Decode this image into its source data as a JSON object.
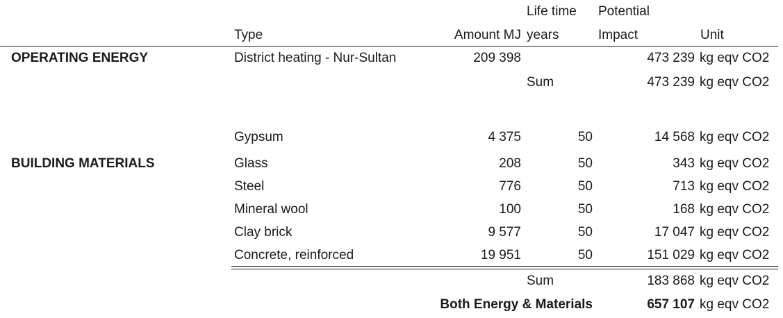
{
  "header": {
    "type": "Type",
    "amount": "Amount MJ",
    "lifetime_line1": "Life time",
    "lifetime_line2": "years",
    "impact_line1": "Potential",
    "impact_line2": "Impact",
    "unit": "Unit"
  },
  "operating": {
    "section_label": "OPERATING ENERGY",
    "rows": [
      {
        "type": "District heating - Nur-Sultan",
        "amount": "209 398",
        "impact": "473 239",
        "unit": "kg eqv CO2"
      }
    ],
    "sum_label": "Sum",
    "sum_impact": "473 239",
    "sum_unit": "kg eqv CO2"
  },
  "materials": {
    "section_label": "BUILDING MATERIALS",
    "rows": [
      {
        "type": "Gypsum",
        "amount": "4 375",
        "lifetime": "50",
        "impact": "14 568",
        "unit": "kg eqv CO2"
      },
      {
        "type": "Glass",
        "amount": "208",
        "lifetime": "50",
        "impact": "343",
        "unit": "kg eqv CO2"
      },
      {
        "type": "Steel",
        "amount": "776",
        "lifetime": "50",
        "impact": "713",
        "unit": "kg eqv CO2"
      },
      {
        "type": "Mineral wool",
        "amount": "100",
        "lifetime": "50",
        "impact": "168",
        "unit": "kg eqv CO2"
      },
      {
        "type": "Clay brick",
        "amount": "9 577",
        "lifetime": "50",
        "impact": "17 047",
        "unit": "kg eqv CO2"
      },
      {
        "type": "Concrete, reinforced",
        "amount": "19 951",
        "lifetime": "50",
        "impact": "151 029",
        "unit": "kg eqv CO2"
      }
    ],
    "sum_label": "Sum",
    "sum_impact": "183 868",
    "sum_unit": "kg eqv CO2"
  },
  "total": {
    "label": "Both Energy & Materials",
    "impact": "657 107",
    "unit": "kg eqv CO2"
  }
}
